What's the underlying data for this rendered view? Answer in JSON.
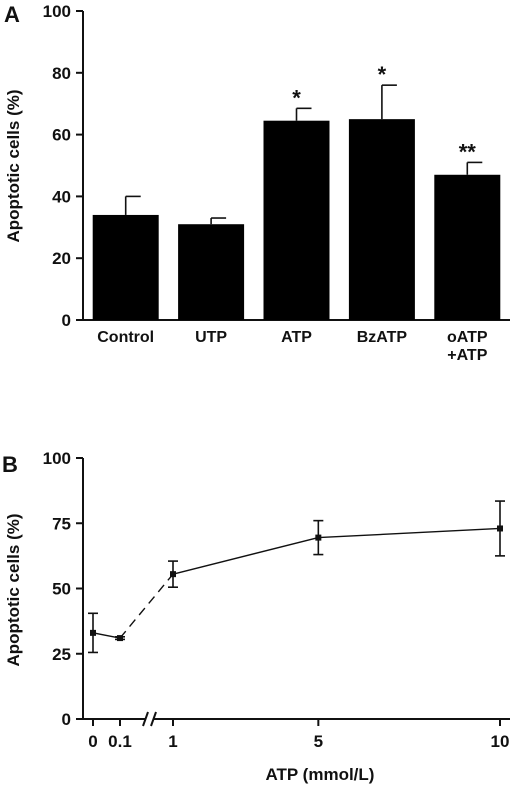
{
  "chart_data": [
    {
      "panel_label": "A",
      "type": "bar",
      "ylabel": "Apoptotic cells (%)",
      "xlabel": "",
      "ylim": [
        0,
        100
      ],
      "yticks": [
        "0",
        "20",
        "40",
        "60",
        "80",
        "100"
      ],
      "categories": [
        {
          "lines": [
            "Control"
          ]
        },
        {
          "lines": [
            "UTP"
          ]
        },
        {
          "lines": [
            "ATP"
          ]
        },
        {
          "lines": [
            "BzATP"
          ]
        },
        {
          "lines": [
            "oATP",
            "+ATP"
          ]
        }
      ],
      "values": [
        34,
        31,
        64.5,
        65,
        47
      ],
      "errors": [
        6,
        2,
        4,
        11,
        4
      ],
      "annotations": [
        "",
        "",
        "*",
        "*",
        "**"
      ],
      "bar_color": "#000000"
    },
    {
      "panel_label": "B",
      "type": "line",
      "ylabel": "Apoptotic cells (%)",
      "xlabel": "ATP (mmol/L)",
      "ylim": [
        0,
        100
      ],
      "yticks": [
        "0",
        "25",
        "50",
        "75",
        "100"
      ],
      "xticks": [
        "0",
        "0.1",
        "1",
        "5",
        "10"
      ],
      "x_axis_break": "between 0.1 and 1",
      "x": [
        0,
        0.1,
        1,
        5,
        10
      ],
      "y": [
        33,
        31,
        55.5,
        69.5,
        73
      ],
      "errors": [
        7.5,
        0.5,
        5,
        6.5,
        10.5
      ],
      "line_color": "#111111"
    }
  ]
}
